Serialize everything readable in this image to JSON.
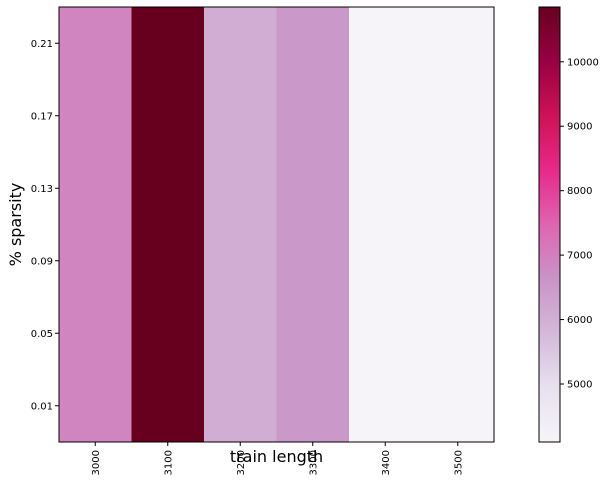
{
  "chart_data": {
    "type": "heatmap",
    "xlabel": "train length",
    "ylabel": "% sparsity",
    "x_categories": [
      "3000",
      "3100",
      "3200",
      "3300",
      "3400",
      "3500"
    ],
    "y_categories": [
      "0.21",
      "0.17",
      "0.13",
      "0.09",
      "0.05",
      "0.01"
    ],
    "column_values": [
      6900,
      10850,
      6050,
      6550,
      4100,
      4100
    ],
    "colorbar": {
      "min": 4100,
      "max": 10850,
      "ticks": [
        "5000",
        "6000",
        "7000",
        "8000",
        "9000",
        "10000"
      ],
      "colormap": "PuRd",
      "colors": [
        "#f7f4f9",
        "#e7e1ef",
        "#d4b9da",
        "#c994c7",
        "#df65b0",
        "#e7298a",
        "#ce1256",
        "#980043",
        "#67001f"
      ]
    },
    "grid": false
  }
}
